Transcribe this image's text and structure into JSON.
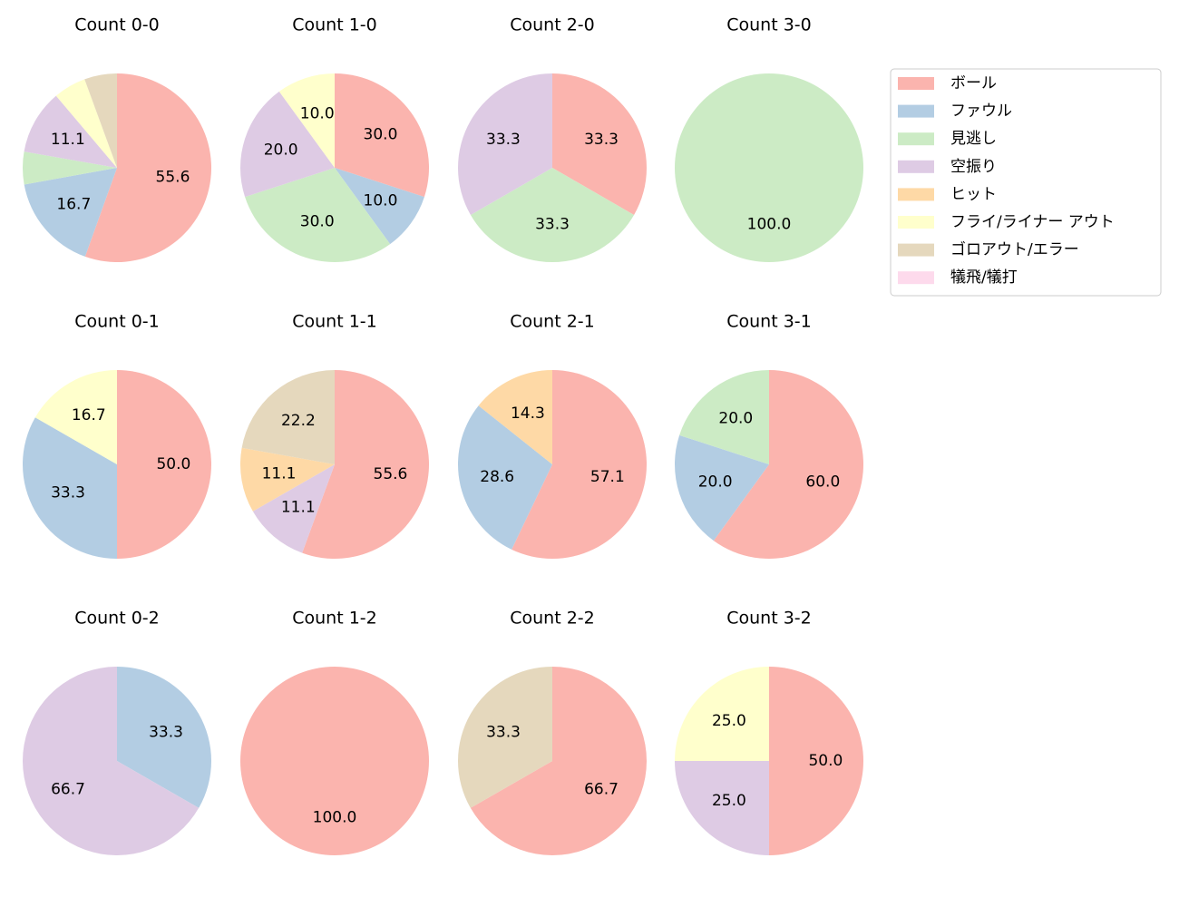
{
  "legend": {
    "labels": [
      "ボール",
      "ファウル",
      "見逃し",
      "空振り",
      "ヒット",
      "フライ/ライナー アウト",
      "ゴロアウト/エラー",
      "犠飛/犠打"
    ],
    "colors": [
      "#fbb4ae",
      "#b3cde3",
      "#ccebc5",
      "#decbe4",
      "#fed9a6",
      "#ffffcc",
      "#e5d8bd",
      "#fddaec"
    ]
  },
  "chart_data": [
    {
      "type": "pie",
      "title": "Count 0-0",
      "categories": [
        "ボール",
        "ファウル",
        "見逃し",
        "空振り",
        "フライ/ライナー アウト",
        "ゴロアウト/エラー"
      ],
      "values": [
        55.6,
        16.7,
        5.6,
        11.1,
        5.6,
        5.6
      ],
      "value_labels": [
        "55.6",
        "16.7",
        null,
        "11.1",
        null,
        null
      ]
    },
    {
      "type": "pie",
      "title": "Count 1-0",
      "categories": [
        "ボール",
        "ファウル",
        "見逃し",
        "空振り",
        "フライ/ライナー アウト"
      ],
      "values": [
        30,
        10,
        30,
        20,
        10
      ],
      "value_labels": [
        "30.0",
        "10.0",
        "30.0",
        "20.0",
        "10.0"
      ]
    },
    {
      "type": "pie",
      "title": "Count 2-0",
      "categories": [
        "ボール",
        "見逃し",
        "空振り"
      ],
      "values": [
        33.3,
        33.3,
        33.3
      ],
      "value_labels": [
        "33.3",
        "33.3",
        "33.3"
      ]
    },
    {
      "type": "pie",
      "title": "Count 3-0",
      "categories": [
        "見逃し"
      ],
      "values": [
        100
      ],
      "value_labels": [
        "100.0"
      ]
    },
    {
      "type": "pie",
      "title": "Count 0-1",
      "categories": [
        "ボール",
        "ファウル",
        "フライ/ライナー アウト"
      ],
      "values": [
        50,
        33.3,
        16.7
      ],
      "value_labels": [
        "50.0",
        "33.3",
        "16.7"
      ]
    },
    {
      "type": "pie",
      "title": "Count 1-1",
      "categories": [
        "ボール",
        "空振り",
        "ヒット",
        "ゴロアウト/エラー"
      ],
      "values": [
        55.6,
        11.1,
        11.1,
        22.2
      ],
      "value_labels": [
        "55.6",
        "11.1",
        "11.1",
        "22.2"
      ]
    },
    {
      "type": "pie",
      "title": "Count 2-1",
      "categories": [
        "ボール",
        "ファウル",
        "ヒット"
      ],
      "values": [
        57.1,
        28.6,
        14.3
      ],
      "value_labels": [
        "57.1",
        "28.6",
        "14.3"
      ]
    },
    {
      "type": "pie",
      "title": "Count 3-1",
      "categories": [
        "ボール",
        "ファウル",
        "見逃し"
      ],
      "values": [
        60,
        20,
        20
      ],
      "value_labels": [
        "60.0",
        "20.0",
        "20.0"
      ]
    },
    {
      "type": "pie",
      "title": "Count 0-2",
      "categories": [
        "ファウル",
        "空振り"
      ],
      "values": [
        33.3,
        66.7
      ],
      "value_labels": [
        "33.3",
        "66.7"
      ]
    },
    {
      "type": "pie",
      "title": "Count 1-2",
      "categories": [
        "ボール"
      ],
      "values": [
        100
      ],
      "value_labels": [
        "100.0"
      ]
    },
    {
      "type": "pie",
      "title": "Count 2-2",
      "categories": [
        "ボール",
        "ゴロアウト/エラー"
      ],
      "values": [
        66.7,
        33.3
      ],
      "value_labels": [
        "66.7",
        "33.3"
      ]
    },
    {
      "type": "pie",
      "title": "Count 3-2",
      "categories": [
        "ボール",
        "空振り",
        "フライ/ライナー アウト"
      ],
      "values": [
        50,
        25,
        25
      ],
      "value_labels": [
        "50.0",
        "25.0",
        "25.0"
      ]
    }
  ]
}
